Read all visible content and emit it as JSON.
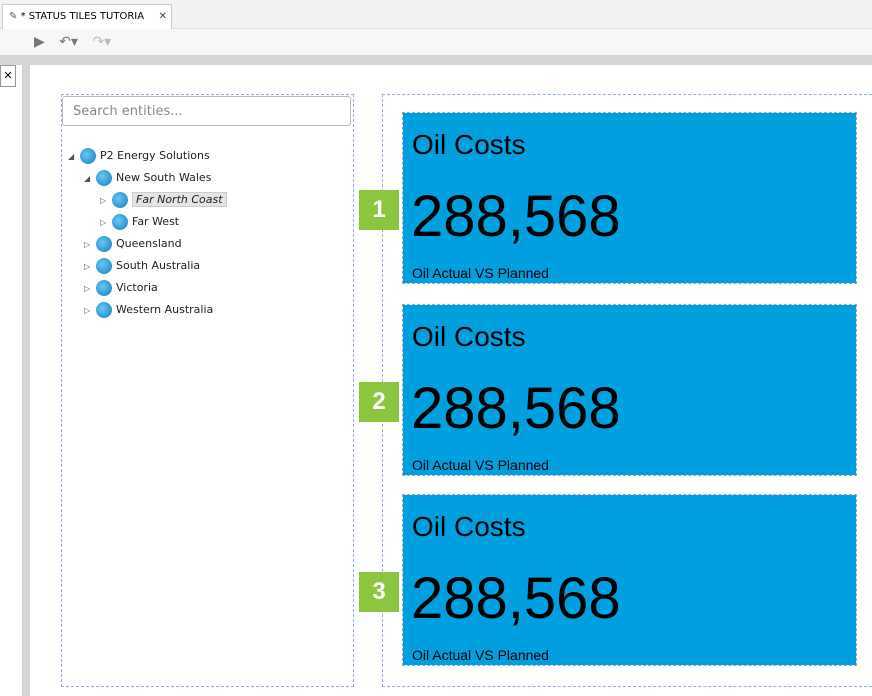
{
  "tab": {
    "title": "* STATUS TILES TUTORIA"
  },
  "search": {
    "placeholder": "Search entities..."
  },
  "tree": {
    "nodes": [
      {
        "label": "P2 Energy Solutions"
      },
      {
        "label": "New South Wales"
      },
      {
        "label": "Far North Coast"
      },
      {
        "label": "Far West"
      },
      {
        "label": "Queensland"
      },
      {
        "label": "South Australia"
      },
      {
        "label": "Victoria"
      },
      {
        "label": "Western Australia"
      }
    ]
  },
  "tiles": [
    {
      "badge": "1",
      "title": "Oil Costs",
      "value": "288,568",
      "subtitle": "Oil Actual VS Planned"
    },
    {
      "badge": "2",
      "title": "Oil Costs",
      "value": "288,568",
      "subtitle": "Oil Actual VS Planned"
    },
    {
      "badge": "3",
      "title": "Oil Costs",
      "value": "288,568",
      "subtitle": "Oil Actual VS Planned"
    }
  ]
}
